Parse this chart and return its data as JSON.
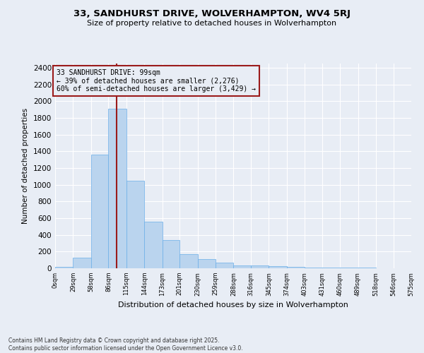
{
  "title_line1": "33, SANDHURST DRIVE, WOLVERHAMPTON, WV4 5RJ",
  "title_line2": "Size of property relative to detached houses in Wolverhampton",
  "xlabel": "Distribution of detached houses by size in Wolverhampton",
  "ylabel": "Number of detached properties",
  "bin_edges": [
    0,
    29,
    58,
    86,
    115,
    144,
    173,
    201,
    230,
    259,
    288,
    316,
    345,
    374,
    403,
    431,
    460,
    489,
    518,
    546,
    575
  ],
  "bar_heights": [
    15,
    125,
    1360,
    1910,
    1050,
    560,
    335,
    170,
    110,
    65,
    35,
    30,
    25,
    20,
    10,
    5,
    5,
    5,
    3,
    2,
    5
  ],
  "bar_color": "#bad4ee",
  "bar_edge_color": "#6aaee8",
  "background_color": "#e8edf5",
  "grid_color": "#ffffff",
  "property_size": 99,
  "vline_color": "#9b1b1b",
  "annotation_text": "33 SANDHURST DRIVE: 99sqm\n← 39% of detached houses are smaller (2,276)\n60% of semi-detached houses are larger (3,429) →",
  "annotation_box_color": "#9b1b1b",
  "ylim": [
    0,
    2450
  ],
  "yticks": [
    0,
    200,
    400,
    600,
    800,
    1000,
    1200,
    1400,
    1600,
    1800,
    2000,
    2200,
    2400
  ],
  "footer_line1": "Contains HM Land Registry data © Crown copyright and database right 2025.",
  "footer_line2": "Contains public sector information licensed under the Open Government Licence v3.0.",
  "tick_labels": [
    "0sqm",
    "29sqm",
    "58sqm",
    "86sqm",
    "115sqm",
    "144sqm",
    "173sqm",
    "201sqm",
    "230sqm",
    "259sqm",
    "288sqm",
    "316sqm",
    "345sqm",
    "374sqm",
    "403sqm",
    "431sqm",
    "460sqm",
    "489sqm",
    "518sqm",
    "546sqm",
    "575sqm"
  ]
}
